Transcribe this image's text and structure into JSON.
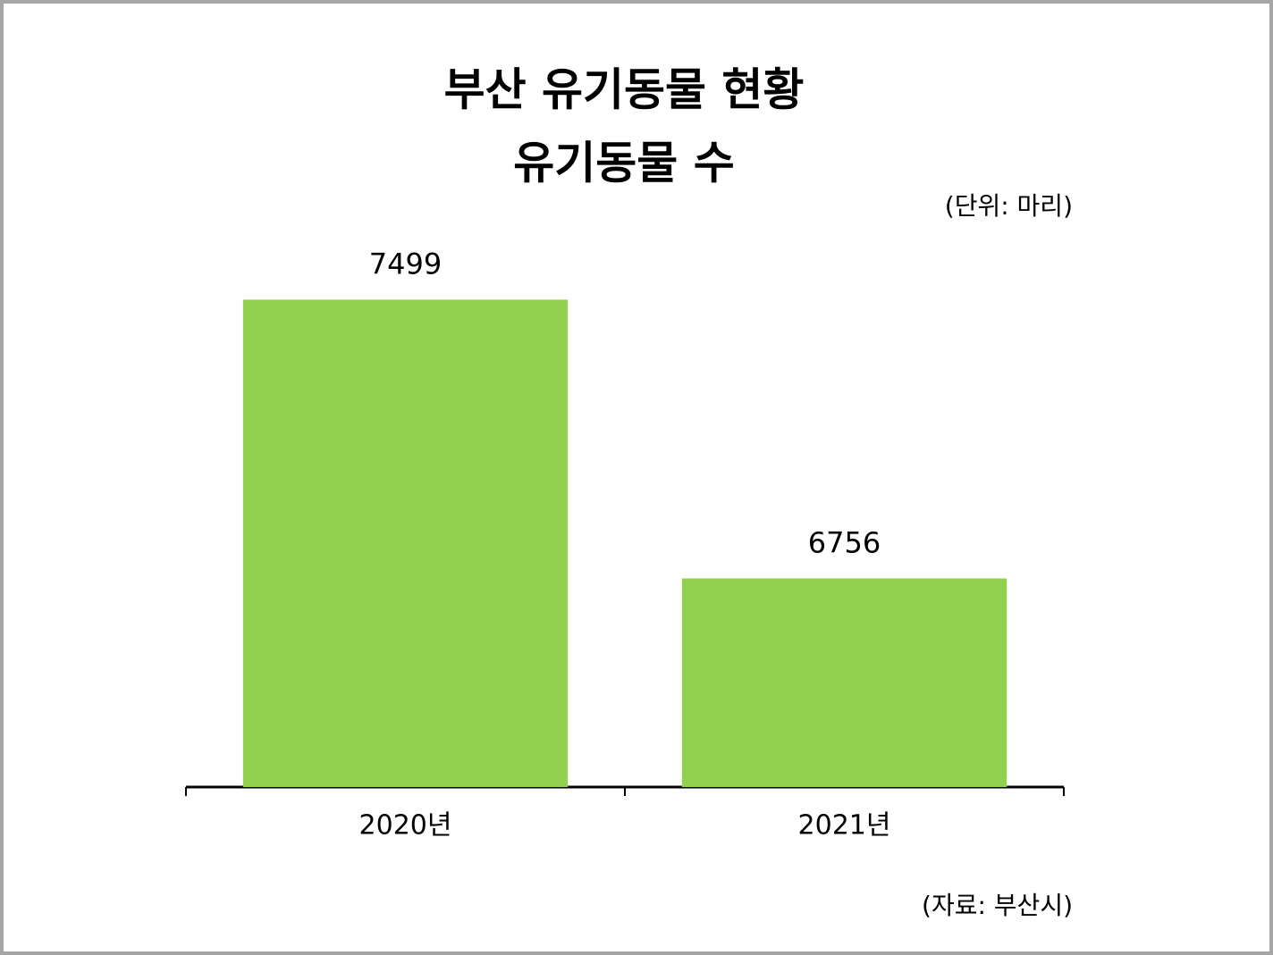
{
  "chart_data": {
    "type": "bar",
    "title": "부산 유기동물 현황",
    "subtitle": "유기동물 수",
    "unit_note": "(단위: 마리)",
    "source": "(자료: 부산시)",
    "categories": [
      "2020년",
      "2021년"
    ],
    "values": [
      7499,
      6756
    ],
    "color": "#92d050",
    "ylim": [
      6200,
      7700
    ]
  }
}
